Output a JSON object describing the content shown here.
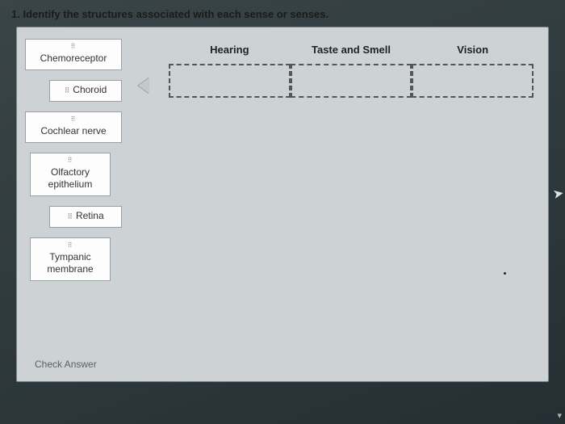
{
  "question": {
    "number": "1.",
    "prompt": "Identify the structures associated with each sense or senses."
  },
  "draggables": [
    {
      "label": "Chemoreceptor",
      "size": "wide"
    },
    {
      "label": "Choroid",
      "size": "narrow",
      "inline_grip": true
    },
    {
      "label": "Cochlear nerve",
      "size": "wide"
    },
    {
      "label": "Olfactory epithelium",
      "size": "med"
    },
    {
      "label": "Retina",
      "size": "narrow",
      "inline_grip": true
    },
    {
      "label": "Tympanic membrane",
      "size": "med"
    }
  ],
  "targets": [
    {
      "label": "Hearing"
    },
    {
      "label": "Taste and Smell"
    },
    {
      "label": "Vision"
    }
  ],
  "actions": {
    "check_answer": "Check Answer"
  },
  "colors": {
    "panel_bg": "#cdd2d4",
    "item_bg": "#fdfdfd",
    "dashed_border": "#555"
  }
}
